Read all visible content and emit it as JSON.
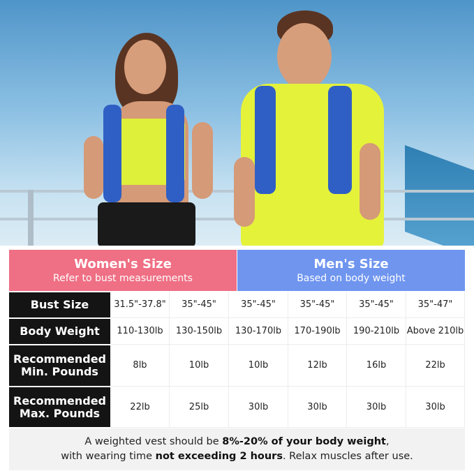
{
  "header": {
    "women": {
      "title": "Women's Size",
      "subtitle": "Refer to bust measurements",
      "color": "#ef6f84"
    },
    "men": {
      "title": "Men's Size",
      "subtitle": "Based on body weight",
      "color": "#6f95ef"
    }
  },
  "rows": [
    {
      "label": "Bust Size",
      "values": [
        "31.5\"-37.8\"",
        "35\"-45\"",
        "35\"-45\"",
        "35\"-45\"",
        "35\"-45\"",
        "35\"-47\""
      ]
    },
    {
      "label": "Body Weight",
      "values": [
        "110-130lb",
        "130-150lb",
        "130-170lb",
        "170-190lb",
        "190-210lb",
        "Above 210lb"
      ]
    },
    {
      "label": "Recommended Min. Pounds",
      "values": [
        "8lb",
        "10lb",
        "10lb",
        "12lb",
        "16lb",
        "22lb"
      ]
    },
    {
      "label": "Recommended Max. Pounds",
      "values": [
        "22lb",
        "25lb",
        "30lb",
        "30lb",
        "30lb",
        "30lb"
      ]
    }
  ],
  "footer": {
    "part1": "A weighted vest should be ",
    "bold1": "8%-20% of your body weight",
    "part2": ",",
    "part3": "with wearing time ",
    "bold2": "not exceeding 2 hours",
    "part4": ". Relax muscles after use."
  }
}
